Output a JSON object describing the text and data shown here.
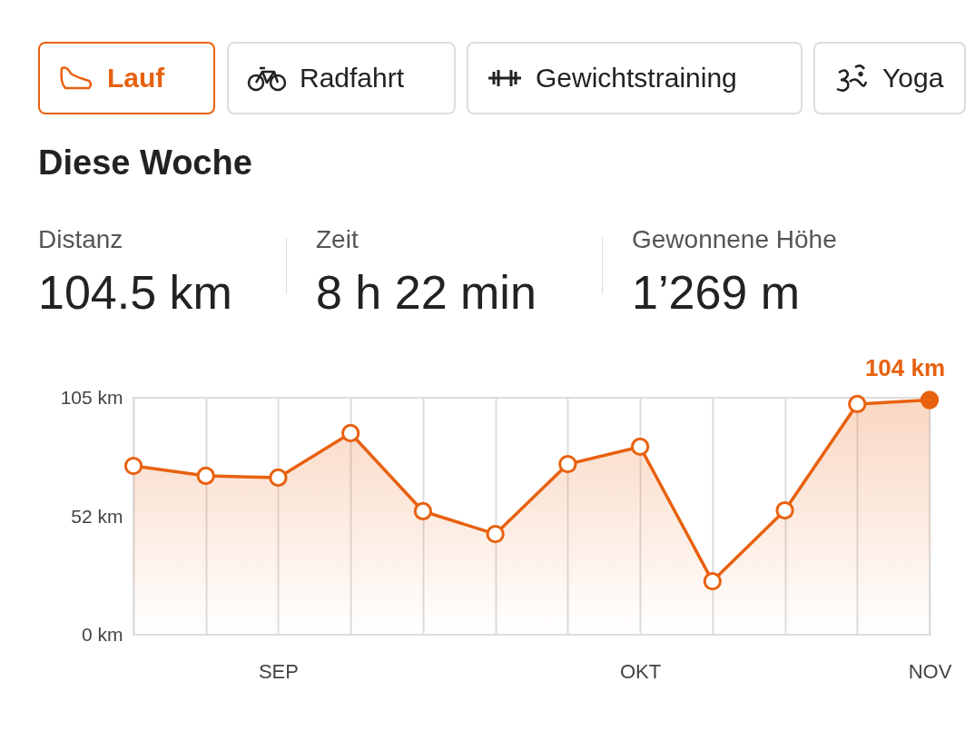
{
  "chart_data": {
    "type": "area",
    "title": "Diese Woche",
    "annotations": [
      "Lauf",
      "Radfahrt",
      "Gewichtstraining",
      "Yoga",
      "Distanz",
      "104.5 km",
      "Zeit",
      "8 h 22 min",
      "Gewonnene Höhe",
      "1’269 m"
    ],
    "categories": [
      null,
      null,
      "SEP",
      null,
      null,
      null,
      null,
      "OKT",
      null,
      null,
      null,
      "NOV"
    ],
    "series": [
      {
        "color": "#e8610f",
        "values": [
          74.8,
          70.4,
          69.6,
          89.3,
          54.7,
          44.6,
          75.6,
          83.3,
          23.7,
          55.1,
          102.2,
          104
        ],
        "value_labels": [
          null,
          null,
          null,
          null,
          null,
          null,
          null,
          null,
          null,
          null,
          null,
          "104 km"
        ]
      }
    ],
    "ylim": [
      0,
      105
    ],
    "yticks": [
      {
        "value": 0,
        "label": "0 km"
      },
      {
        "value": 52,
        "label": "52 km"
      },
      {
        "value": 105,
        "label": "105 km"
      }
    ],
    "grid": "x",
    "marker": "circle",
    "line_style": "solid"
  }
}
